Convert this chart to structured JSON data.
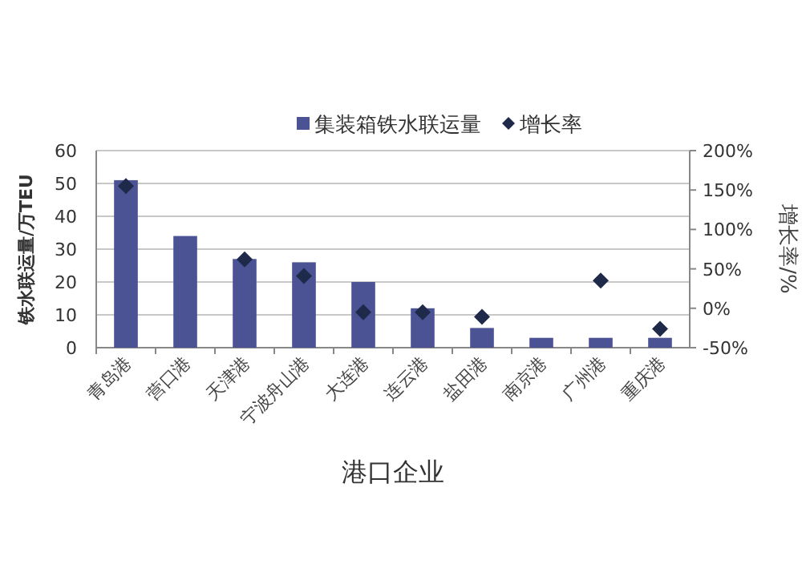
{
  "chart_data": {
    "type": "bar",
    "xlabel": "港口企业",
    "ylabel": "铁水联运量/万TEU",
    "y2label": "增长率/%",
    "categories": [
      "青岛港",
      "营口港",
      "天津港",
      "宁波舟山港",
      "大连港",
      "连云港",
      "盐田港",
      "南京港",
      "广州港",
      "重庆港"
    ],
    "series": [
      {
        "name": "集装箱铁水联运量",
        "color": "#4b5394",
        "values": [
          51,
          34,
          27,
          26,
          20,
          12,
          6,
          3,
          3,
          3
        ]
      },
      {
        "name": "增长率",
        "type": "scatter",
        "axis": "y2",
        "marker": "diamond",
        "color": "#1f2a4a",
        "values": [
          155,
          null,
          62,
          41,
          -5,
          -5,
          -11,
          null,
          35,
          -26
        ]
      }
    ],
    "ylim": [
      0,
      60
    ],
    "yticks": [
      0,
      10,
      20,
      30,
      40,
      50,
      60
    ],
    "y2lim": [
      -50,
      200
    ],
    "y2ticks": [
      {
        "value": -50,
        "label": "-50%"
      },
      {
        "value": 0,
        "label": "0%"
      },
      {
        "value": 50,
        "label": "50%"
      },
      {
        "value": 100,
        "label": "100%"
      },
      {
        "value": 150,
        "label": "150%"
      },
      {
        "value": 200,
        "label": "200%"
      }
    ],
    "grid": "y",
    "legend": "top"
  }
}
